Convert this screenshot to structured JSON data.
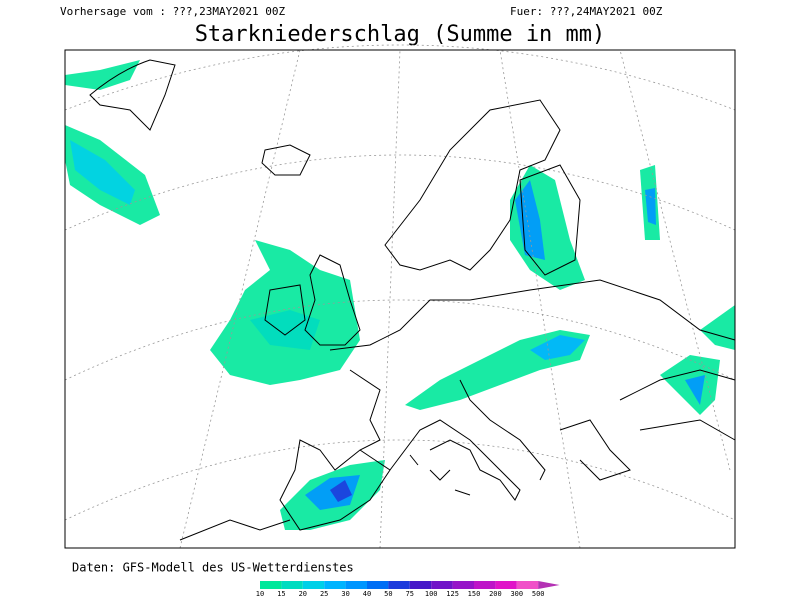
{
  "header": {
    "left": "Vorhersage vom : ???,23MAY2021 00Z",
    "right": "Fuer: ???,24MAY2021 00Z",
    "title": "Starkniederschlag (Summe in mm)"
  },
  "footer": {
    "source": "Daten: GFS-Modell des US-Wetterdienstes"
  },
  "colorbar": {
    "labels": [
      "10",
      "15",
      "20",
      "25",
      "30",
      "40",
      "50",
      "75",
      "100",
      "125",
      "150",
      "200",
      "300",
      "500"
    ],
    "colors": [
      "#00e89a",
      "#00dcc0",
      "#00d0e8",
      "#00b4ff",
      "#0096ff",
      "#006ef5",
      "#1e3cdc",
      "#4618c8",
      "#7014c8",
      "#9614c8",
      "#be14c8",
      "#e014c8",
      "#f050c8",
      "#b432b4"
    ]
  }
}
